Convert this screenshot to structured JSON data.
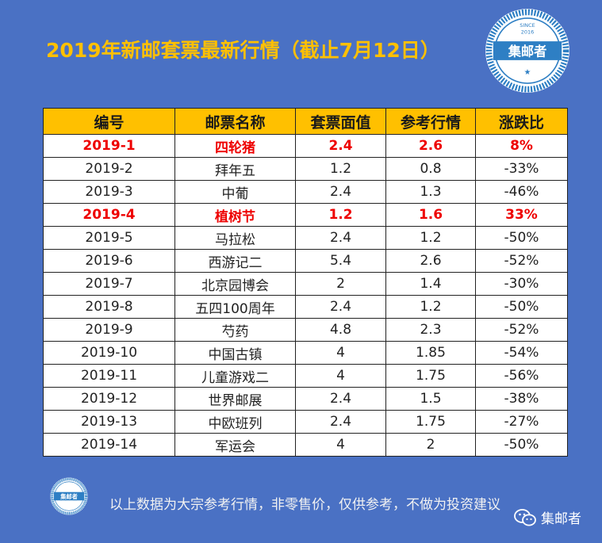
{
  "title": "2019年新邮套票最新行情（截止7月12日）",
  "colors": {
    "background": "#4a71c4",
    "title": "#ffc000",
    "header": "#ffc000",
    "highlight": "#ee0000"
  },
  "logo": {
    "name": "集邮者",
    "since": "SINCE",
    "year": "2016"
  },
  "table": {
    "headers": [
      "编号",
      "邮票名称",
      "套票面值",
      "参考行情",
      "涨跌比"
    ],
    "rows": [
      {
        "cells": [
          "2019-1",
          "四轮猪",
          "2.4",
          "2.6",
          "8%"
        ],
        "highlight": true
      },
      {
        "cells": [
          "2019-2",
          "拜年五",
          "1.2",
          "0.8",
          "-33%"
        ],
        "highlight": false
      },
      {
        "cells": [
          "2019-3",
          "中葡",
          "2.4",
          "1.3",
          "-46%"
        ],
        "highlight": false
      },
      {
        "cells": [
          "2019-4",
          "植树节",
          "1.2",
          "1.6",
          "33%"
        ],
        "highlight": true
      },
      {
        "cells": [
          "2019-5",
          "马拉松",
          "2.4",
          "1.2",
          "-50%"
        ],
        "highlight": false
      },
      {
        "cells": [
          "2019-6",
          "西游记二",
          "5.4",
          "2.6",
          "-52%"
        ],
        "highlight": false
      },
      {
        "cells": [
          "2019-7",
          "北京园博会",
          "2",
          "1.4",
          "-30%"
        ],
        "highlight": false
      },
      {
        "cells": [
          "2019-8",
          "五四100周年",
          "2.4",
          "1.2",
          "-50%"
        ],
        "highlight": false
      },
      {
        "cells": [
          "2019-9",
          "芍药",
          "4.8",
          "2.3",
          "-52%"
        ],
        "highlight": false
      },
      {
        "cells": [
          "2019-10",
          "中国古镇",
          "4",
          "1.85",
          "-54%"
        ],
        "highlight": false
      },
      {
        "cells": [
          "2019-11",
          "儿童游戏二",
          "4",
          "1.75",
          "-56%"
        ],
        "highlight": false
      },
      {
        "cells": [
          "2019-12",
          "世界邮展",
          "2.4",
          "1.5",
          "-38%"
        ],
        "highlight": false
      },
      {
        "cells": [
          "2019-13",
          "中欧班列",
          "2.4",
          "1.75",
          "-27%"
        ],
        "highlight": false
      },
      {
        "cells": [
          "2019-14",
          "军运会",
          "4",
          "2",
          "-50%"
        ],
        "highlight": false
      }
    ]
  },
  "footer": {
    "note": "以上数据为大宗参考行情，非零售价，仅供参考，不做为投资建议",
    "wechat_icon": "wechat-icon",
    "account": "集邮者"
  }
}
